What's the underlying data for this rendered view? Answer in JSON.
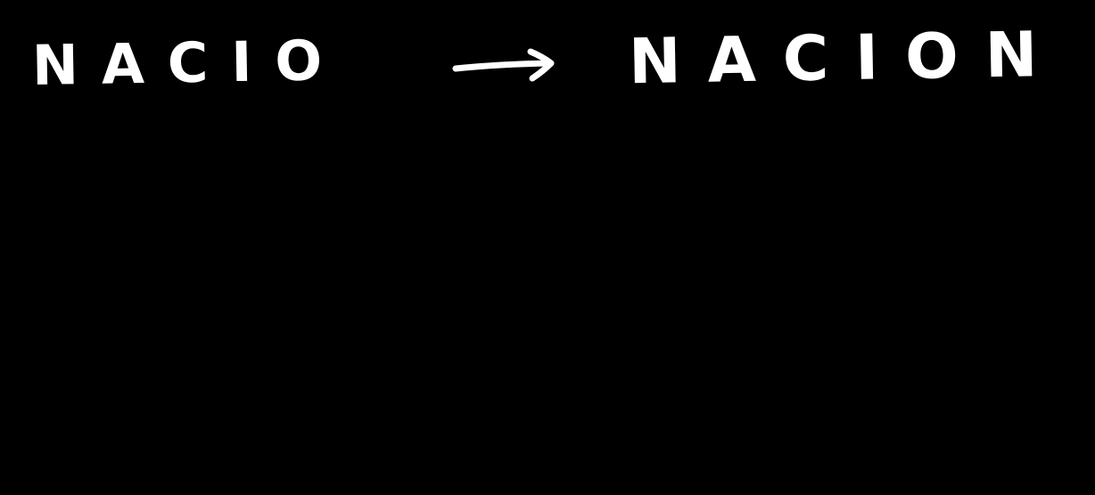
{
  "note": {
    "left_word": "NACIO",
    "right_word": "NACION",
    "arrow_icon": "right-arrow-icon",
    "ink_color": "#ffffff",
    "background_color": "#000000"
  }
}
